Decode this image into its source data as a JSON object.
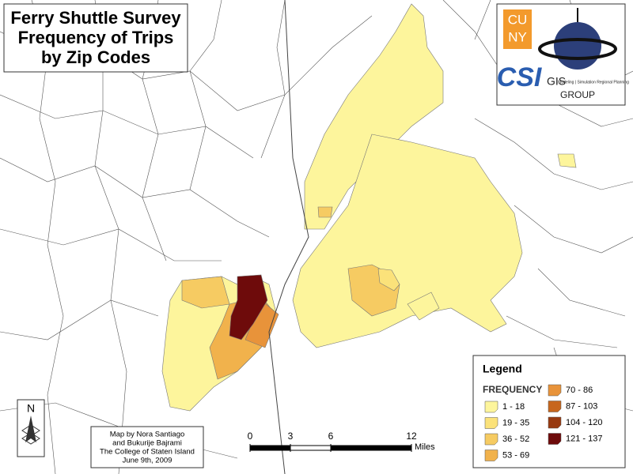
{
  "title": {
    "lines": [
      "Ferry Shuttle Survey",
      "Frequency of Trips",
      "by Zip Codes"
    ]
  },
  "logos": {
    "cuny_top": "CU",
    "cuny_bottom": "NY",
    "csi": "CSI",
    "gis": "GIS",
    "gis_tagline": "Modeling | Simulation Regional Planning",
    "group": "GROUP"
  },
  "legend": {
    "title": "Legend",
    "heading": "FREQUENCY",
    "items": [
      {
        "label": "1 - 18",
        "color": "#fdf59c"
      },
      {
        "label": "19 - 35",
        "color": "#fbe27a"
      },
      {
        "label": "36 - 52",
        "color": "#f6cb62"
      },
      {
        "label": "53 - 69",
        "color": "#f1b24c"
      },
      {
        "label": "70 - 86",
        "color": "#e8933a"
      },
      {
        "label": "87 - 103",
        "color": "#c7661d"
      },
      {
        "label": "104 - 120",
        "color": "#983a10"
      },
      {
        "label": "121 - 137",
        "color": "#6e0b0b"
      }
    ]
  },
  "credits": {
    "lines": [
      "Map by Nora Santiago",
      "and Bukurije Bajrami",
      "The College of Staten Island",
      "June 9th, 2009"
    ]
  },
  "scale": {
    "ticks": [
      0,
      3,
      6,
      12
    ],
    "unit": "Miles"
  },
  "north": "N"
}
